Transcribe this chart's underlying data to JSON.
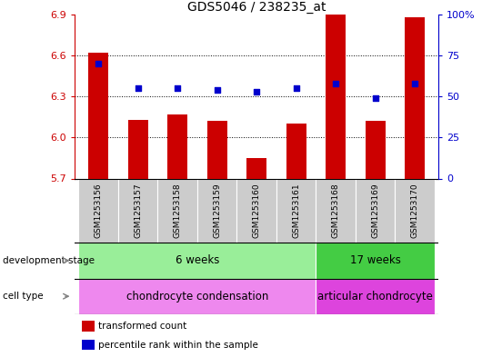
{
  "title": "GDS5046 / 238235_at",
  "samples": [
    "GSM1253156",
    "GSM1253157",
    "GSM1253158",
    "GSM1253159",
    "GSM1253160",
    "GSM1253161",
    "GSM1253168",
    "GSM1253169",
    "GSM1253170"
  ],
  "transformed_count": [
    6.62,
    6.13,
    6.17,
    6.12,
    5.85,
    6.1,
    6.9,
    6.12,
    6.88
  ],
  "percentile_rank": [
    70,
    55,
    55,
    54,
    53,
    55,
    58,
    49,
    58
  ],
  "ylim_left": [
    5.7,
    6.9
  ],
  "ylim_right": [
    0,
    100
  ],
  "yticks_left": [
    5.7,
    6.0,
    6.3,
    6.6,
    6.9
  ],
  "yticks_right": [
    0,
    25,
    50,
    75,
    100
  ],
  "ytick_labels_right": [
    "0",
    "25",
    "50",
    "75",
    "100%"
  ],
  "grid_lines": [
    6.0,
    6.3,
    6.6
  ],
  "bar_color": "#cc0000",
  "dot_color": "#0000cc",
  "bar_bottom": 5.7,
  "dev_stage_groups": [
    {
      "label": "6 weeks",
      "start": 0,
      "end": 6,
      "color": "#99ee99"
    },
    {
      "label": "17 weeks",
      "start": 6,
      "end": 9,
      "color": "#44cc44"
    }
  ],
  "cell_type_groups": [
    {
      "label": "chondrocyte condensation",
      "start": 0,
      "end": 6,
      "color": "#ee88ee"
    },
    {
      "label": "articular chondrocyte",
      "start": 6,
      "end": 9,
      "color": "#dd44dd"
    }
  ],
  "left_label_dev": "development stage",
  "left_label_cell": "cell type",
  "legend_items": [
    {
      "color": "#cc0000",
      "label": "transformed count"
    },
    {
      "color": "#0000cc",
      "label": "percentile rank within the sample"
    }
  ],
  "background_color": "#ffffff",
  "plot_bg_color": "#ffffff",
  "tick_label_color_left": "#cc0000",
  "tick_label_color_right": "#0000cc",
  "sample_box_color": "#cccccc",
  "bar_width": 0.5
}
